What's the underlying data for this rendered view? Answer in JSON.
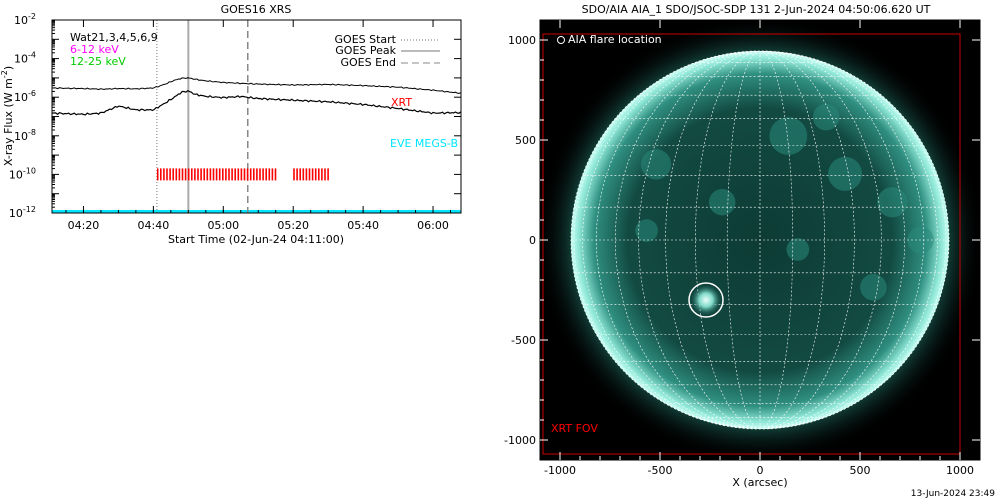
{
  "left_chart": {
    "title": "GOES16 XRS",
    "xlabel": "Start Time (02-Jun-24 04:11:00)",
    "ylabel_prefix": "X-ray Flux (W m",
    "ylabel_exp": "-2",
    "ylabel_suffix": ")",
    "channel_label": "Wat21,3,4,5,6,9",
    "band1_label": "6-12 keV",
    "band2_label": "12-25 keV",
    "xrt_label": "XRT",
    "eve_label": "EVE MEGS-B",
    "legend": {
      "start": "GOES Start",
      "peak": "GOES Peak",
      "end": "GOES End"
    },
    "y_ticks": [
      {
        "base": "10",
        "exp": "-2"
      },
      {
        "base": "10",
        "exp": "-4"
      },
      {
        "base": "10",
        "exp": "-6"
      },
      {
        "base": "10",
        "exp": "-8"
      },
      {
        "base": "10",
        "exp": "-10"
      },
      {
        "base": "10",
        "exp": "-12"
      }
    ],
    "x_ticks": [
      "04:20",
      "04:40",
      "05:00",
      "05:20",
      "05:40",
      "06:00"
    ]
  },
  "right_chart": {
    "title": "SDO/AIA AIA_1 SDO/JSOC-SDP 131  2-Jun-2024 04:50:06.620 UT",
    "legend_text": "AIA flare location",
    "xlabel": "X (arcsec)",
    "fov_label": "XRT FOV",
    "x_ticks": [
      "-1000",
      "-500",
      "0",
      "500",
      "1000"
    ],
    "y_ticks": [
      "1000",
      "500",
      "0",
      "-500",
      "-1000"
    ]
  },
  "footer_timestamp": "13-Jun-2024 23:49",
  "colors": {
    "goes_long": "#000000",
    "goes_short": "#000000",
    "xrt_marks": "#ff0000",
    "eve": "#00e5ff",
    "band1": "#ff00ff",
    "band2": "#00cc00",
    "sun_rim": "#bfffff",
    "sun_core": "#0a3a33",
    "fov": "#cc0000"
  },
  "chart_data": [
    {
      "type": "line",
      "title": "GOES16 XRS",
      "xlabel": "Start Time (02-Jun-24 04:11:00)",
      "ylabel": "X-ray Flux (W m^-2)",
      "y_scale": "log",
      "ylim": [
        1e-12,
        0.01
      ],
      "xlim": [
        "04:11",
        "06:08"
      ],
      "series": [
        {
          "x": [
            "04:11",
            "04:20",
            "04:25",
            "04:30",
            "04:35",
            "04:40",
            "04:43",
            "04:46",
            "04:48",
            "04:50",
            "04:52",
            "04:55",
            "05:00",
            "05:05",
            "05:10",
            "05:20",
            "05:30",
            "05:40",
            "05:50",
            "06:00",
            "06:08"
          ],
          "y": [
            3e-06,
            2.8e-06,
            2.6e-06,
            2.8e-06,
            2.7e-06,
            3e-06,
            4.5e-06,
            7.5e-06,
            9.5e-06,
            1e-05,
            8.5e-06,
            7e-06,
            5.8e-06,
            5.2e-06,
            4.8e-06,
            4.3e-06,
            4.6e-06,
            4e-06,
            3.3e-06,
            2.3e-06,
            1.6e-06
          ]
        },
        {
          "x": [
            "04:11",
            "04:20",
            "04:25",
            "04:28",
            "04:30",
            "04:35",
            "04:40",
            "04:43",
            "04:46",
            "04:48",
            "04:50",
            "04:52",
            "04:55",
            "05:00",
            "05:05",
            "05:10",
            "05:20",
            "05:30",
            "05:40",
            "05:50",
            "06:00",
            "06:08"
          ],
          "y": [
            1.5e-07,
            1.3e-07,
            1.5e-07,
            2.5e-07,
            3.5e-07,
            2.2e-07,
            2.2e-07,
            4.5e-07,
            1e-06,
            1.8e-06,
            2.1e-06,
            1.4e-06,
            1.1e-06,
            9.5e-07,
            1.1e-06,
            8.5e-07,
            7e-07,
            5.8e-07,
            4.2e-07,
            2.6e-07,
            1.5e-07,
            1.6e-07
          ]
        }
      ],
      "goes_start": "04:41",
      "goes_peak": "04:50",
      "goes_end": "05:07",
      "xrt_observations": [
        "04:41",
        "05:15",
        "05:20",
        "05:30"
      ],
      "xrt_level": 1e-10,
      "eve_level": 1e-12
    },
    {
      "type": "image",
      "title": "SDO/AIA AIA_1 SDO/JSOC-SDP 131  2-Jun-2024 04:50:06.620 UT",
      "xlabel": "X (arcsec)",
      "xlim": [
        -1100,
        1100
      ],
      "ylim": [
        -1100,
        1100
      ],
      "solar_radius_arcsec": 945,
      "flare_location": [
        -270,
        -300
      ],
      "flare_circle_radius_arcsec": 85,
      "xrt_fov": {
        "x": [
          -1085,
          1000
        ],
        "y": [
          -1070,
          1030
        ]
      },
      "grid_step_deg": 10
    }
  ]
}
